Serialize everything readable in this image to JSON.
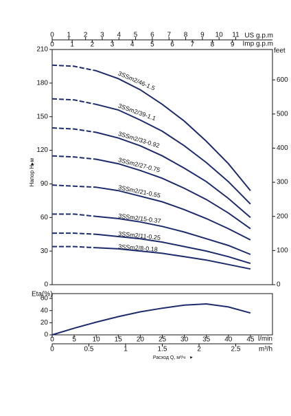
{
  "chart_data": [
    {
      "type": "line",
      "y_label": "Напор H, м",
      "y2_label": "feet",
      "x": [
        0,
        5,
        10,
        15,
        20,
        25,
        30,
        35,
        40,
        45
      ],
      "xlim": [
        0,
        50
      ],
      "top_axes": [
        {
          "label": "US g.p.m",
          "xlim": [
            0,
            13.2
          ],
          "xticks": [
            0,
            1,
            2,
            3,
            4,
            5,
            6,
            7,
            8,
            9,
            10,
            11
          ]
        },
        {
          "label": "Imp g.p.m",
          "xlim": [
            0,
            11.0
          ],
          "xticks": [
            0,
            1,
            2,
            3,
            4,
            5,
            6,
            7,
            8,
            9
          ]
        }
      ],
      "ylim": [
        0,
        210
      ],
      "yticks": [
        0,
        30,
        60,
        90,
        120,
        150,
        180,
        210
      ],
      "y2lim": [
        0,
        689
      ],
      "y2ticks": [
        0,
        100,
        200,
        300,
        400,
        500,
        600
      ],
      "color": "#1c2a6e",
      "series": [
        {
          "name": "3SSm2/46-1.5",
          "values": [
            196,
            195,
            191,
            184,
            174,
            161,
            146,
            128,
            108,
            84
          ]
        },
        {
          "name": "3SSm2/39-1.1",
          "values": [
            166,
            165,
            161,
            156,
            147,
            137,
            124,
            109,
            92,
            72
          ]
        },
        {
          "name": "3SSm2/33-0.92",
          "values": [
            140,
            139,
            136,
            131,
            124,
            115,
            104,
            92,
            77,
            60
          ]
        },
        {
          "name": "3SSm2/27-0.75",
          "values": [
            115,
            114,
            112,
            108,
            102,
            95,
            86,
            76,
            64,
            50
          ]
        },
        {
          "name": "3SSm2/21-0.55",
          "values": [
            89,
            88,
            87,
            84,
            79,
            74,
            67,
            59,
            50,
            40
          ]
        },
        {
          "name": "3SSm2/15-0.37",
          "values": [
            63,
            63,
            61,
            59,
            56,
            52,
            47,
            41,
            35,
            27
          ]
        },
        {
          "name": "3SSm2/11-0.25",
          "values": [
            46,
            46,
            45,
            43,
            41,
            38,
            34,
            30,
            25,
            19
          ]
        },
        {
          "name": "3SSm2/8-0.18",
          "values": [
            34,
            34,
            33,
            32,
            30,
            28,
            25,
            22,
            18,
            14
          ]
        }
      ]
    },
    {
      "type": "line",
      "y_label": "Eta(%)",
      "x": [
        0,
        5,
        10,
        15,
        20,
        25,
        30,
        35,
        40,
        45
      ],
      "xlim": [
        0,
        50
      ],
      "xticks": [
        0,
        5,
        10,
        15,
        20,
        25,
        30,
        35,
        40,
        45
      ],
      "x_label": "l/min",
      "x2lim": [
        0,
        3.0
      ],
      "x2ticks": [
        0,
        0.5,
        1,
        1.5,
        2,
        2.5
      ],
      "x2_label": "m³/h",
      "x_title": "Расход Q, м³/ч",
      "ylim": [
        0,
        68
      ],
      "yticks": [
        0,
        20,
        40,
        60
      ],
      "color": "#1c2a6e",
      "values": [
        0,
        11,
        21,
        30,
        38,
        44,
        49,
        51,
        46,
        36
      ]
    }
  ]
}
